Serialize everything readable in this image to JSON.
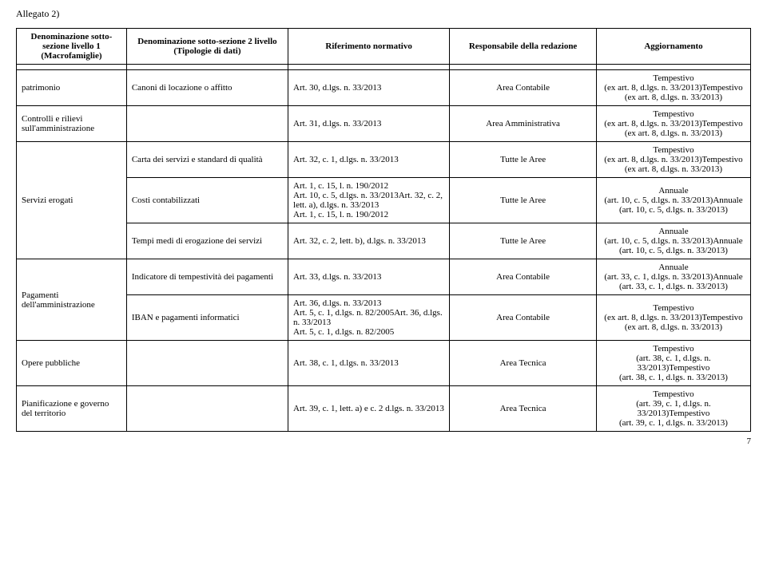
{
  "allegato": "Allegato 2)",
  "header": {
    "col1": "Denominazione sotto-sezione livello 1 (Macrofamiglie)",
    "col2": "Denominazione sotto-sezione 2 livello (Tipologie di dati)",
    "col3": "Riferimento normativo",
    "col4": "Responsabile della redazione",
    "col5": "Aggiornamento"
  },
  "rows": [
    {
      "c1": "patrimonio",
      "c2": "Canoni di locazione o affitto",
      "c3": "Art. 30, d.lgs. n. 33/2013",
      "c4": "Area Contabile",
      "c5": "Tempestivo\n(ex art. 8, d.lgs. n. 33/2013)Tempestivo\n(ex art. 8, d.lgs. n. 33/2013)"
    },
    {
      "c1": "Controlli e rilievi sull'amministrazione",
      "c2": "",
      "c3": "Art. 31, d.lgs. n. 33/2013",
      "c4": "Area Amministrativa",
      "c5": "Tempestivo\n(ex art. 8, d.lgs. n. 33/2013)Tempestivo\n(ex art. 8, d.lgs. n. 33/2013)"
    },
    {
      "c1": "",
      "c2": "Carta dei servizi e standard di qualità",
      "c3": "Art. 32, c. 1, d.lgs. n. 33/2013",
      "c4": "Tutte le Aree",
      "c5": "Tempestivo\n(ex art. 8, d.lgs. n. 33/2013)Tempestivo\n(ex art. 8, d.lgs. n. 33/2013)"
    },
    {
      "c1": "Servizi erogati",
      "c2": "Costi contabilizzati",
      "c3": "Art. 1, c. 15, l. n. 190/2012\nArt. 10, c. 5, d.lgs. n. 33/2013Art. 32, c. 2, lett. a), d.lgs. n. 33/2013\nArt. 1, c. 15, l. n. 190/2012",
      "c4": "Tutte le Aree",
      "c5": "Annuale\n(art. 10, c. 5, d.lgs. n. 33/2013)Annuale\n(art. 10, c. 5, d.lgs. n. 33/2013)"
    },
    {
      "c1": "",
      "c2": "Tempi medi di erogazione dei servizi",
      "c3": "Art. 32, c. 2, lett. b), d.lgs. n. 33/2013",
      "c4": "Tutte le Aree",
      "c5": "Annuale\n(art. 10, c. 5, d.lgs. n. 33/2013)Annuale\n(art. 10, c. 5, d.lgs. n. 33/2013)"
    },
    {
      "c1": "",
      "c2": "Indicatore di tempestività dei pagamenti",
      "c3": "Art. 33, d.lgs. n. 33/2013",
      "c4": "Area Contabile",
      "c5": "Annuale\n(art. 33, c. 1, d.lgs. n. 33/2013)Annuale\n(art. 33, c. 1, d.lgs. n. 33/2013)"
    },
    {
      "c1": "Pagamenti dell'amministrazione",
      "c2": "IBAN e pagamenti informatici",
      "c3": "Art. 36, d.lgs. n. 33/2013\nArt. 5, c. 1, d.lgs. n. 82/2005Art. 36, d.lgs. n. 33/2013\nArt. 5, c. 1, d.lgs. n. 82/2005",
      "c4": "Area Contabile",
      "c5": "Tempestivo\n(ex art. 8, d.lgs. n. 33/2013)Tempestivo\n(ex art. 8, d.lgs. n. 33/2013)"
    },
    {
      "c1": "Opere pubbliche",
      "c2": "",
      "c3": "Art. 38, c. 1, d.lgs. n. 33/2013",
      "c4": "Area Tecnica",
      "c5": "Tempestivo\n(art. 38, c. 1, d.lgs. n. 33/2013)Tempestivo\n(art. 38, c. 1, d.lgs. n. 33/2013)"
    },
    {
      "c1": "Pianificazione e governo del territorio",
      "c2": "",
      "c3": "Art. 39, c. 1, lett. a) e c. 2 d.lgs. n. 33/2013",
      "c4": "Area Tecnica",
      "c5": "Tempestivo\n(art. 39, c. 1, d.lgs. n. 33/2013)Tempestivo\n(art. 39, c. 1, d.lgs. n. 33/2013)"
    }
  ],
  "pageNumber": "7"
}
